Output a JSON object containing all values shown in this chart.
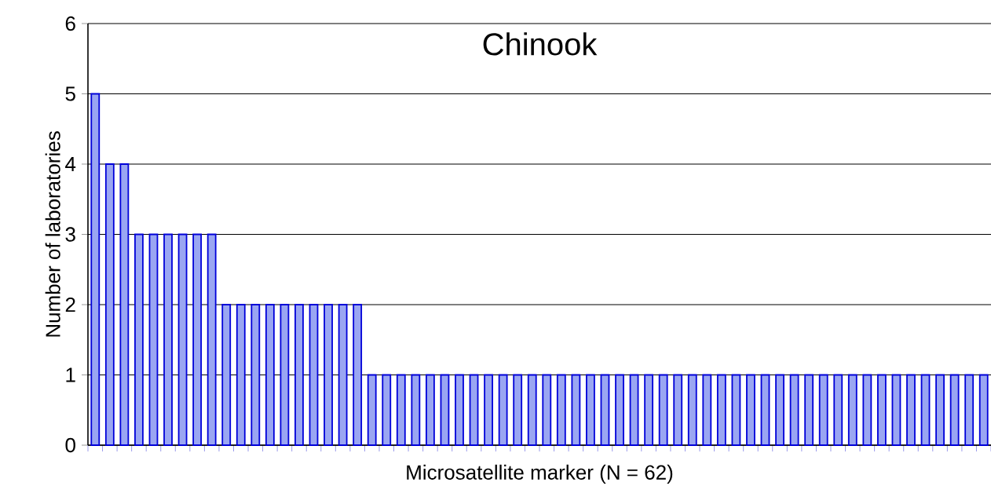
{
  "chart_data": {
    "type": "bar",
    "title": "Chinook",
    "xlabel": "Microsatellite marker (N = 62)",
    "ylabel": "Number of laboratories",
    "categories": [
      null,
      null,
      null,
      null,
      null,
      null,
      null,
      null,
      null,
      null,
      null,
      null,
      null,
      null,
      null,
      null,
      null,
      null,
      null,
      null,
      null,
      null,
      null,
      null,
      null,
      null,
      null,
      null,
      null,
      null,
      null,
      null,
      null,
      null,
      null,
      null,
      null,
      null,
      null,
      null,
      null,
      null,
      null,
      null,
      null,
      null,
      null,
      null,
      null,
      null,
      null,
      null,
      null,
      null,
      null,
      null,
      null,
      null,
      null,
      null,
      null,
      null
    ],
    "values": [
      5,
      4,
      4,
      3,
      3,
      3,
      3,
      3,
      3,
      2,
      2,
      2,
      2,
      2,
      2,
      2,
      2,
      2,
      2,
      1,
      1,
      1,
      1,
      1,
      1,
      1,
      1,
      1,
      1,
      1,
      1,
      1,
      1,
      1,
      1,
      1,
      1,
      1,
      1,
      1,
      1,
      1,
      1,
      1,
      1,
      1,
      1,
      1,
      1,
      1,
      1,
      1,
      1,
      1,
      1,
      1,
      1,
      1,
      1,
      1,
      1,
      1
    ],
    "color": "#9aa6f2",
    "ylim": [
      0,
      6
    ],
    "yticks": [
      0,
      1,
      2,
      3,
      4,
      5,
      6
    ],
    "grid": "y"
  }
}
